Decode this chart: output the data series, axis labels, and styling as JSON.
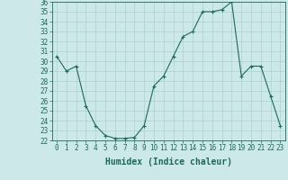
{
  "xlabel": "Humidex (Indice chaleur)",
  "x": [
    0,
    1,
    2,
    3,
    4,
    5,
    6,
    7,
    8,
    9,
    10,
    11,
    12,
    13,
    14,
    15,
    16,
    17,
    18,
    19,
    20,
    21,
    22,
    23
  ],
  "y": [
    30.5,
    29.0,
    29.5,
    25.5,
    23.5,
    22.5,
    22.2,
    22.2,
    22.3,
    23.5,
    27.5,
    28.5,
    30.5,
    32.5,
    33.0,
    35.0,
    35.0,
    35.2,
    36.0,
    28.5,
    29.5,
    29.5,
    26.5,
    23.5
  ],
  "ylim": [
    22,
    36
  ],
  "yticks": [
    22,
    23,
    24,
    25,
    26,
    27,
    28,
    29,
    30,
    31,
    32,
    33,
    34,
    35,
    36
  ],
  "xticks": [
    0,
    1,
    2,
    3,
    4,
    5,
    6,
    7,
    8,
    9,
    10,
    11,
    12,
    13,
    14,
    15,
    16,
    17,
    18,
    19,
    20,
    21,
    22,
    23
  ],
  "line_color": "#1a6b5a",
  "marker": "+",
  "bg_color": "#cce8e8",
  "grid_color": "#aad0d0",
  "label_fontsize": 7,
  "tick_fontsize": 5.5
}
